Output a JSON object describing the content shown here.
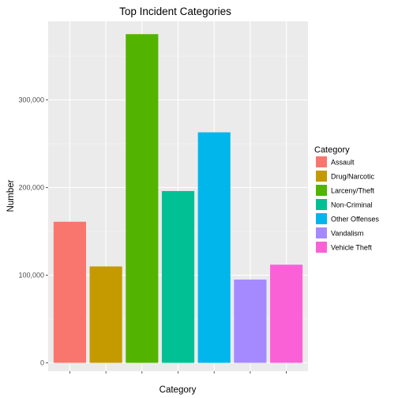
{
  "chart_data": {
    "type": "bar",
    "title": "Top Incident Categories",
    "xlabel": "Category",
    "ylabel": "Number",
    "categories": [
      "Assault",
      "Drug/Narcotic",
      "Larceny/Theft",
      "Non-Criminal",
      "Other Offenses",
      "Vandalism",
      "Vehicle Theft"
    ],
    "values": [
      161000,
      110000,
      375000,
      196000,
      263000,
      95000,
      112000
    ],
    "colors": [
      "#F8766D",
      "#C49A00",
      "#53B400",
      "#00C094",
      "#00B6EB",
      "#A58AFF",
      "#FB61D7"
    ],
    "ylim": [
      0,
      400000
    ],
    "yticks": [
      0,
      100000,
      200000,
      300000
    ],
    "ytick_labels": [
      "0",
      "100,000",
      "200,000",
      "300,000"
    ],
    "x_tick_labels_visible": false,
    "grid": true,
    "panel_background": "#EBEBEB",
    "legend": {
      "title": "Category",
      "placement": "right",
      "entries": [
        "Assault",
        "Drug/Narcotic",
        "Larceny/Theft",
        "Non-Criminal",
        "Other Offenses",
        "Vandalism",
        "Vehicle Theft"
      ]
    }
  }
}
